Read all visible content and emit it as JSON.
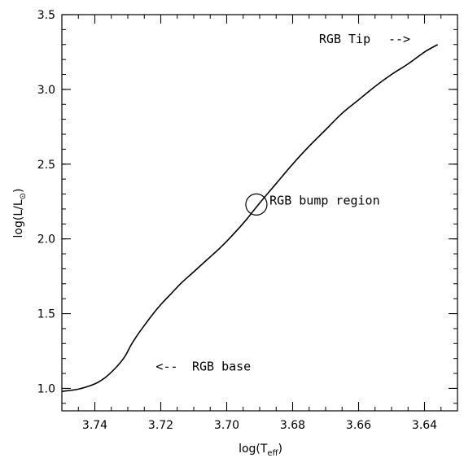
{
  "chart_data": {
    "type": "line",
    "title": "",
    "xlabel": "log(T",
    "xlabel_sub": "eff",
    "xlabel_close": ")",
    "ylabel": "log(L/L",
    "ylabel_sub": "⊙",
    "ylabel_close": ")",
    "xlim": [
      3.75,
      3.63
    ],
    "x_reversed": true,
    "ylim": [
      0.85,
      3.5
    ],
    "x_ticks": [
      3.74,
      3.72,
      3.7,
      3.68,
      3.66,
      3.64
    ],
    "x_tick_labels": [
      "3.74",
      "3.72",
      "3.70",
      "3.68",
      "3.66",
      "3.64"
    ],
    "y_ticks": [
      1.0,
      1.5,
      2.0,
      2.5,
      3.0,
      3.5
    ],
    "y_tick_labels": [
      "1.0",
      "1.5",
      "2.0",
      "2.5",
      "3.0",
      "3.5"
    ],
    "x_minor_step": 0.005,
    "y_minor_step": 0.1,
    "grid": false,
    "series": [
      {
        "x": [
          3.75,
          3.745,
          3.74,
          3.737,
          3.734,
          3.731,
          3.729,
          3.727,
          3.725,
          3.723,
          3.72,
          3.717,
          3.714,
          3.71,
          3.706,
          3.702,
          3.698,
          3.694,
          3.69,
          3.685,
          3.68,
          3.675,
          3.67,
          3.665,
          3.66,
          3.655,
          3.65,
          3.645,
          3.64,
          3.636
        ],
        "y": [
          0.98,
          0.995,
          1.03,
          1.07,
          1.13,
          1.21,
          1.29,
          1.36,
          1.42,
          1.48,
          1.56,
          1.63,
          1.7,
          1.78,
          1.86,
          1.94,
          2.03,
          2.13,
          2.24,
          2.37,
          2.5,
          2.62,
          2.73,
          2.84,
          2.93,
          3.02,
          3.1,
          3.17,
          3.25,
          3.3
        ]
      }
    ],
    "annotations": [
      {
        "text": "RGB Tip",
        "x": 3.672,
        "y": 3.31
      },
      {
        "text": "-->",
        "x": 3.651,
        "y": 3.31
      },
      {
        "text": "RGB bump region",
        "x": 3.687,
        "y": 2.23
      },
      {
        "text": "<--",
        "x": 3.7215,
        "y": 1.12
      },
      {
        "text": "RGB base",
        "x": 3.7105,
        "y": 1.12
      }
    ],
    "marker": {
      "shape": "open-circle",
      "x": 3.691,
      "y": 2.23,
      "label": "bump-marker"
    }
  }
}
